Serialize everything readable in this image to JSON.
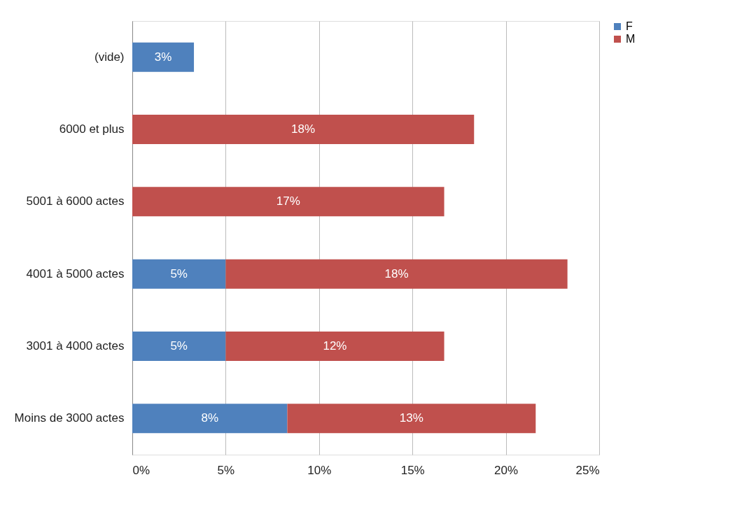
{
  "chart_data": {
    "type": "bar",
    "orientation": "horizontal",
    "stacked": true,
    "categories": [
      "(vide)",
      "6000 et plus",
      "5001 à 6000 actes",
      "4001 à 5000 actes",
      "3001 à 4000 actes",
      "Moins de 3000 actes"
    ],
    "series": [
      {
        "name": "F",
        "color": "#4f81bd",
        "values": [
          3.3,
          0,
          0,
          5.0,
          5.0,
          8.3
        ],
        "value_labels": [
          "3%",
          null,
          null,
          "5%",
          "5%",
          "8%"
        ]
      },
      {
        "name": "M",
        "color": "#c0504d",
        "values": [
          0,
          18.3,
          16.7,
          18.3,
          11.7,
          13.3
        ],
        "value_labels": [
          null,
          "18%",
          "17%",
          "18%",
          "12%",
          "13%"
        ]
      }
    ],
    "xlim": [
      0,
      25
    ],
    "xticks": [
      {
        "value": 0,
        "label": "0%"
      },
      {
        "value": 5,
        "label": "5%"
      },
      {
        "value": 10,
        "label": "10%"
      },
      {
        "value": 15,
        "label": "15%"
      },
      {
        "value": 20,
        "label": "20%"
      },
      {
        "value": 25,
        "label": "25%"
      }
    ],
    "grid": "x",
    "legend": "right"
  }
}
